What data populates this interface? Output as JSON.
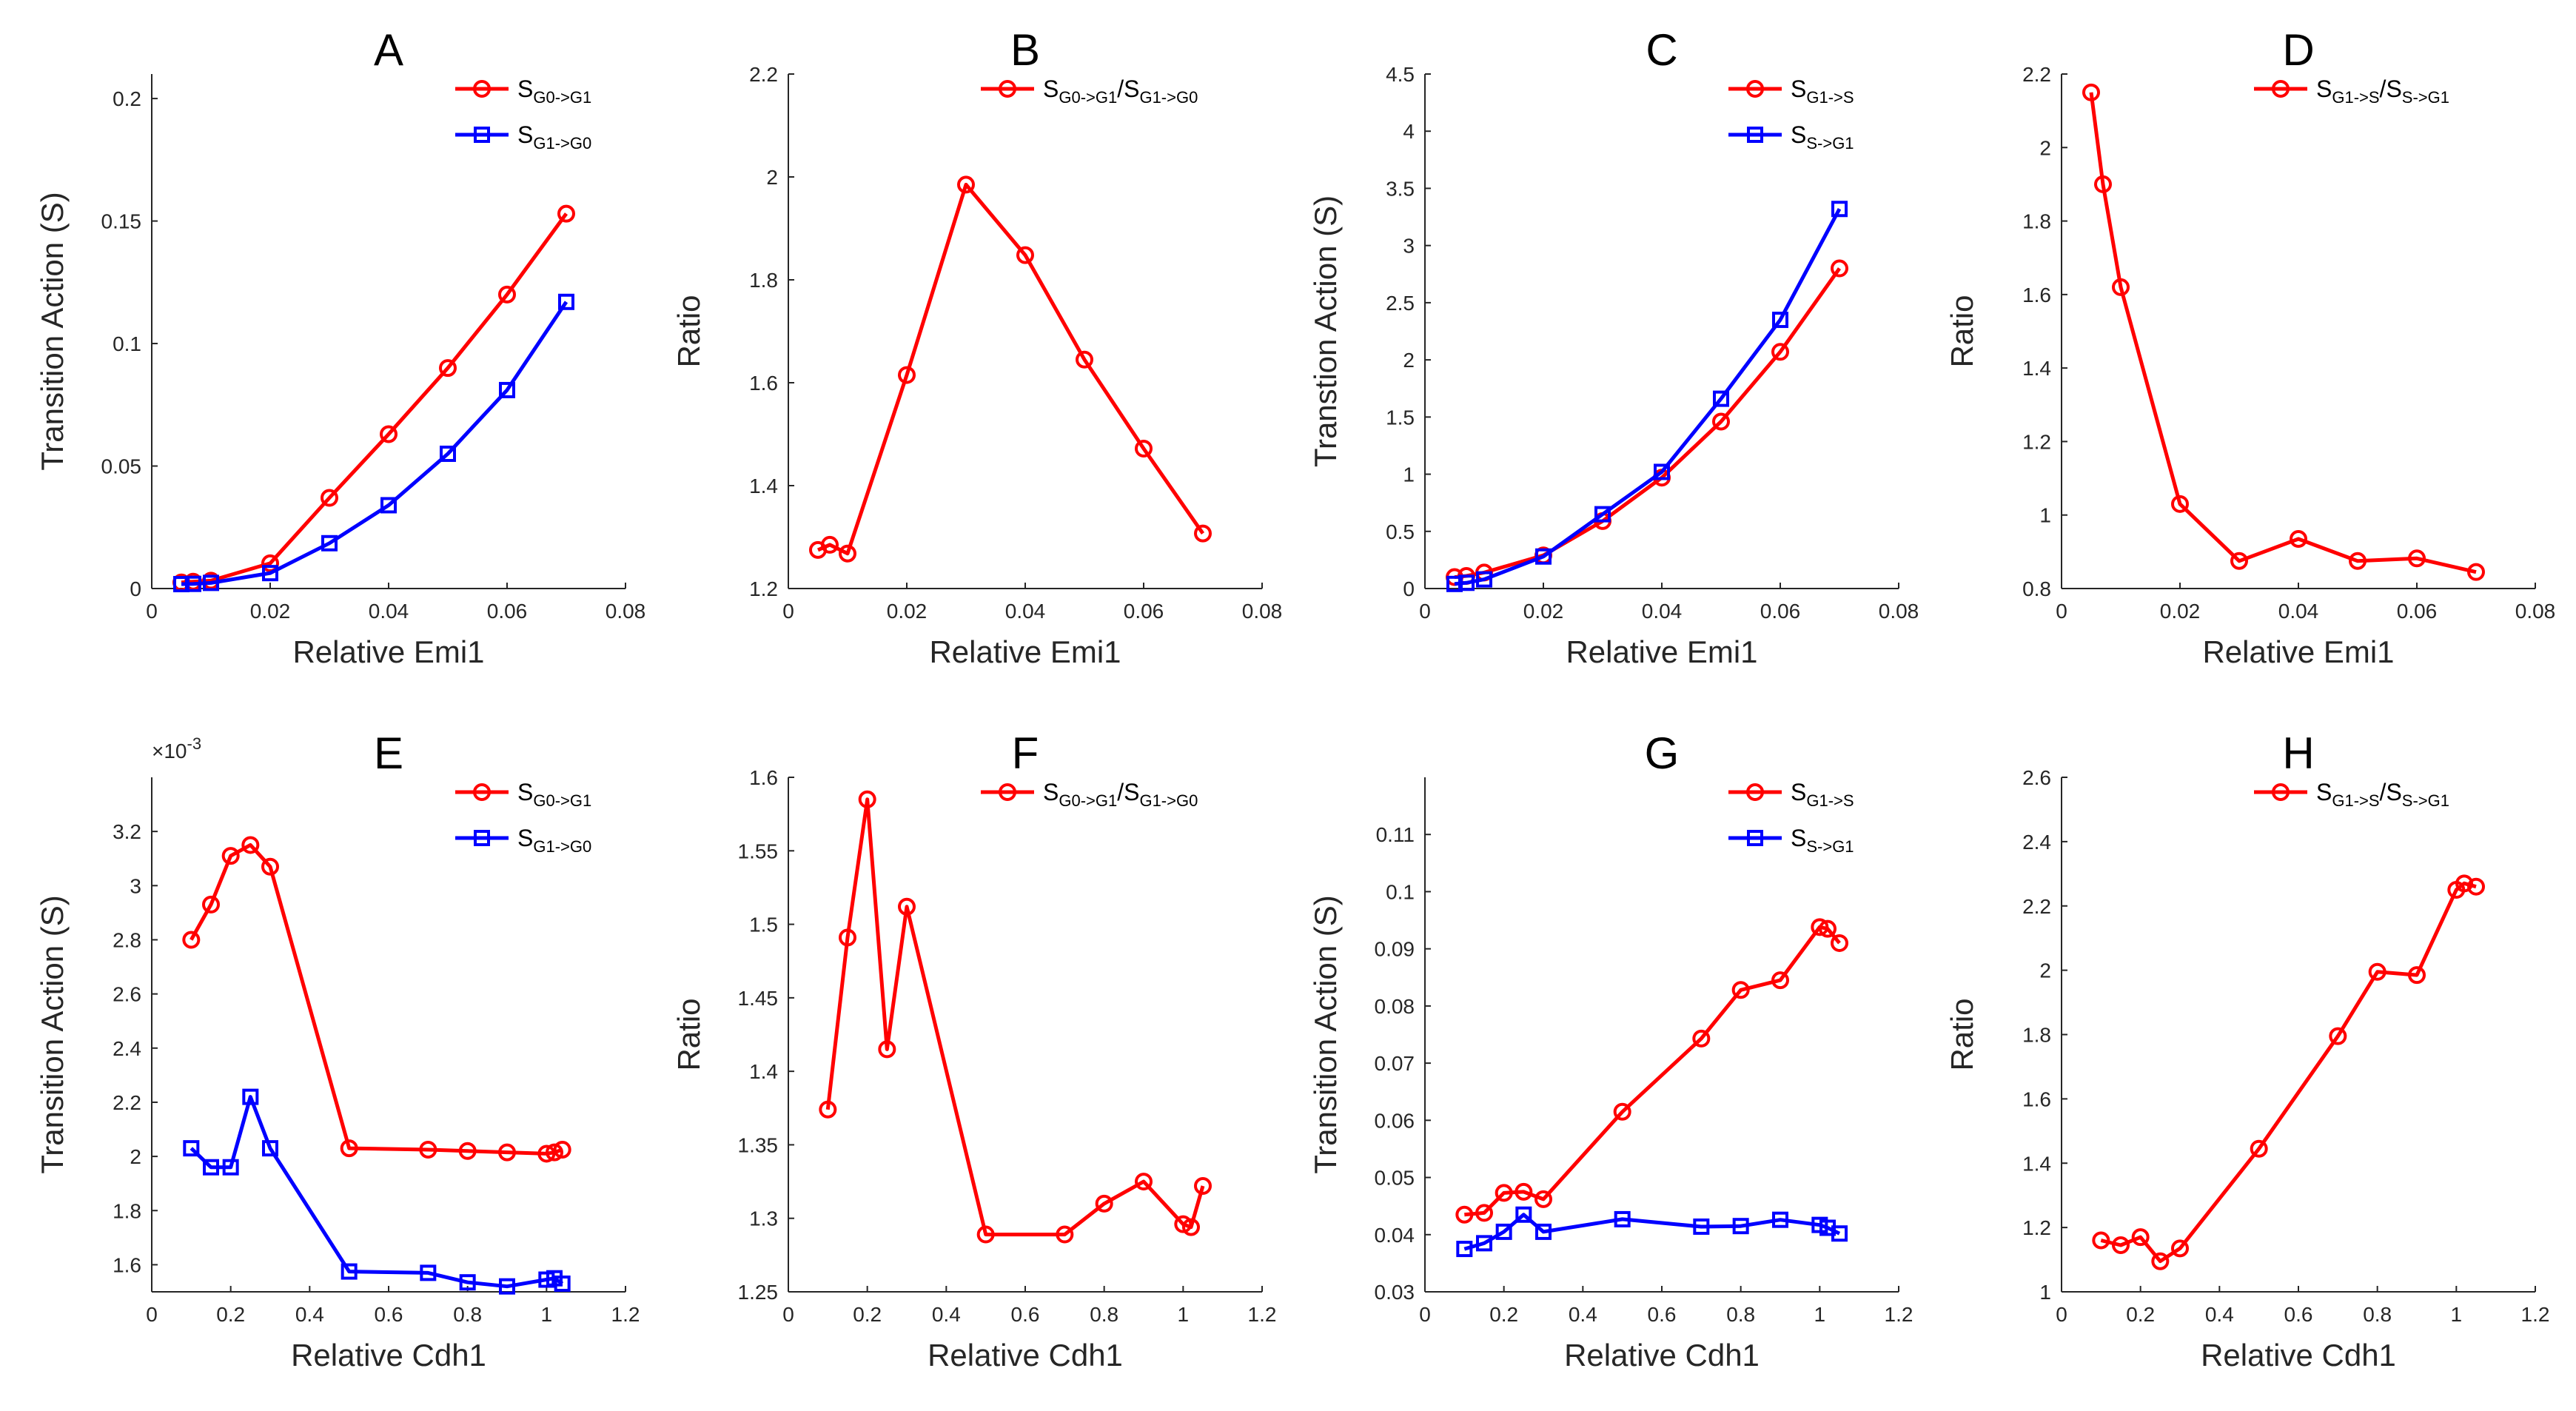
{
  "colors": {
    "red": "#ff0000",
    "blue": "#0000ff"
  },
  "chart_data": [
    {
      "panel": "A",
      "type": "line",
      "title": "A",
      "xlabel": "Relative Emi1",
      "ylabel": "Transition Action (S)",
      "xlim": [
        0,
        0.08
      ],
      "ylim": [
        0,
        0.21
      ],
      "xticks": [
        0,
        0.02,
        0.04,
        0.06,
        0.08
      ],
      "xticklabels": [
        "0",
        "0.02",
        "0.04",
        "0.06",
        "0.08"
      ],
      "yticks": [
        0,
        0.05,
        0.1,
        0.15,
        0.2
      ],
      "yticklabels": [
        "0",
        "0.05",
        "0.1",
        "0.15",
        "0.2"
      ],
      "yexp": "",
      "x": [
        0.005,
        0.007,
        0.01,
        0.02,
        0.03,
        0.04,
        0.05,
        0.06,
        0.07
      ],
      "legend": {
        "position": "top-right"
      },
      "series": [
        {
          "name": "S_{G0->G1}",
          "name_main": "S",
          "name_sub": "G0->G1",
          "name_sep": "",
          "name_main2": "",
          "name_sub2": "",
          "color": "red",
          "marker": "circle",
          "values": [
            0.0025,
            0.0028,
            0.0032,
            0.0103,
            0.037,
            0.063,
            0.09,
            0.12,
            0.153
          ]
        },
        {
          "name": "S_{G1->G0}",
          "name_main": "S",
          "name_sub": "G1->G0",
          "name_sep": "",
          "name_main2": "",
          "name_sub2": "",
          "color": "blue",
          "marker": "square",
          "values": [
            0.0018,
            0.0019,
            0.0023,
            0.0063,
            0.0185,
            0.034,
            0.055,
            0.081,
            0.117
          ]
        }
      ]
    },
    {
      "panel": "B",
      "type": "line",
      "title": "B",
      "xlabel": "Relative Emi1",
      "ylabel": "Ratio",
      "xlim": [
        0,
        0.08
      ],
      "ylim": [
        1.2,
        2.2
      ],
      "xticks": [
        0,
        0.02,
        0.04,
        0.06,
        0.08
      ],
      "xticklabels": [
        "0",
        "0.02",
        "0.04",
        "0.06",
        "0.08"
      ],
      "yticks": [
        1.2,
        1.4,
        1.6,
        1.8,
        2.0,
        2.2
      ],
      "yticklabels": [
        "1.2",
        "1.4",
        "1.6",
        "1.8",
        "2",
        "2.2"
      ],
      "yexp": "",
      "x": [
        0.005,
        0.007,
        0.01,
        0.02,
        0.03,
        0.04,
        0.05,
        0.06,
        0.07
      ],
      "legend": {
        "position": "top-right"
      },
      "series": [
        {
          "name": "S_{G0->G1}/S_{G1->G0}",
          "name_main": "S",
          "name_sub": "G0->G1",
          "name_sep": "/",
          "name_main2": "S",
          "name_sub2": "G1->G0",
          "color": "red",
          "marker": "circle",
          "values": [
            1.275,
            1.285,
            1.268,
            1.615,
            1.985,
            1.848,
            1.645,
            1.472,
            1.307
          ]
        }
      ]
    },
    {
      "panel": "C",
      "type": "line",
      "title": "C",
      "xlabel": "Relative Emi1",
      "ylabel": "Transtion Action (S)",
      "xlim": [
        0,
        0.08
      ],
      "ylim": [
        0,
        4.5
      ],
      "xticks": [
        0,
        0.02,
        0.04,
        0.06,
        0.08
      ],
      "xticklabels": [
        "0",
        "0.02",
        "0.04",
        "0.06",
        "0.08"
      ],
      "yticks": [
        0,
        0.5,
        1,
        1.5,
        2,
        2.5,
        3,
        3.5,
        4,
        4.5
      ],
      "yticklabels": [
        "0",
        "0.5",
        "1",
        "1.5",
        "2",
        "2.5",
        "3",
        "3.5",
        "4",
        "4.5"
      ],
      "yexp": "",
      "x": [
        0.005,
        0.007,
        0.01,
        0.02,
        0.03,
        0.04,
        0.05,
        0.06,
        0.07
      ],
      "legend": {
        "position": "top-right"
      },
      "series": [
        {
          "name": "S_{G1->S}",
          "name_main": "S",
          "name_sub": "G1->S",
          "name_sep": "",
          "name_main2": "",
          "name_sub2": "",
          "color": "red",
          "marker": "circle",
          "values": [
            0.1,
            0.11,
            0.14,
            0.29,
            0.59,
            0.97,
            1.46,
            2.07,
            2.8
          ]
        },
        {
          "name": "S_{S->G1}",
          "name_main": "S",
          "name_sub": "S->G1",
          "name_sep": "",
          "name_main2": "",
          "name_sub2": "",
          "color": "blue",
          "marker": "square",
          "values": [
            0.04,
            0.05,
            0.08,
            0.28,
            0.65,
            1.02,
            1.66,
            2.35,
            3.32
          ]
        }
      ]
    },
    {
      "panel": "D",
      "type": "line",
      "title": "D",
      "xlabel": "Relative Emi1",
      "ylabel": "Ratio",
      "xlim": [
        0,
        0.08
      ],
      "ylim": [
        0.8,
        2.2
      ],
      "xticks": [
        0,
        0.02,
        0.04,
        0.06,
        0.08
      ],
      "xticklabels": [
        "0",
        "0.02",
        "0.04",
        "0.06",
        "0.08"
      ],
      "yticks": [
        0.8,
        1.0,
        1.2,
        1.4,
        1.6,
        1.8,
        2.0,
        2.2
      ],
      "yticklabels": [
        "0.8",
        "1",
        "1.2",
        "1.4",
        "1.6",
        "1.8",
        "2",
        "2.2"
      ],
      "yexp": "",
      "x": [
        0.005,
        0.007,
        0.01,
        0.02,
        0.03,
        0.04,
        0.05,
        0.06,
        0.07
      ],
      "legend": {
        "position": "top-right"
      },
      "series": [
        {
          "name": "S_{G1->S}/S_{S->G1}",
          "name_main": "S",
          "name_sub": "G1->S",
          "name_sep": "/",
          "name_main2": "S",
          "name_sub2": "S->G1",
          "color": "red",
          "marker": "circle",
          "values": [
            2.15,
            1.9,
            1.62,
            1.03,
            0.875,
            0.935,
            0.875,
            0.882,
            0.845
          ]
        }
      ]
    },
    {
      "panel": "E",
      "type": "line",
      "title": "E",
      "xlabel": "Relative Cdh1",
      "ylabel": "Transition Action (S)",
      "xlim": [
        0,
        1.2
      ],
      "ylim": [
        1.5,
        3.4
      ],
      "xticks": [
        0,
        0.2,
        0.4,
        0.6,
        0.8,
        1.0,
        1.2
      ],
      "xticklabels": [
        "0",
        "0.2",
        "0.4",
        "0.6",
        "0.8",
        "1",
        "1.2"
      ],
      "yticks": [
        1.6,
        1.8,
        2.0,
        2.2,
        2.4,
        2.6,
        2.8,
        3.0,
        3.2
      ],
      "yticklabels": [
        "1.6",
        "1.8",
        "2",
        "2.2",
        "2.4",
        "2.6",
        "2.8",
        "3",
        "3.2"
      ],
      "yexp": "×10",
      "yexp_power": "-3",
      "x": [
        0.1,
        0.15,
        0.2,
        0.25,
        0.3,
        0.5,
        0.7,
        0.8,
        0.9,
        1.0,
        1.02,
        1.04
      ],
      "legend": {
        "position": "top-right"
      },
      "series": [
        {
          "name": "S_{G0->G1}",
          "name_main": "S",
          "name_sub": "G0->G1",
          "name_sep": "",
          "name_main2": "",
          "name_sub2": "",
          "color": "red",
          "marker": "circle",
          "values": [
            2.8,
            2.93,
            3.11,
            3.15,
            3.07,
            2.03,
            2.025,
            2.02,
            2.015,
            2.01,
            2.015,
            2.025
          ]
        },
        {
          "name": "S_{G1->G0}",
          "name_main": "S",
          "name_sub": "G1->G0",
          "name_sep": "",
          "name_main2": "",
          "name_sub2": "",
          "color": "blue",
          "marker": "square",
          "values": [
            2.03,
            1.96,
            1.96,
            2.22,
            2.03,
            1.575,
            1.57,
            1.535,
            1.52,
            1.545,
            1.55,
            1.53
          ]
        }
      ]
    },
    {
      "panel": "F",
      "type": "line",
      "title": "F",
      "xlabel": "Relative Cdh1",
      "ylabel": "Ratio",
      "xlim": [
        0,
        1.2
      ],
      "ylim": [
        1.25,
        1.6
      ],
      "xticks": [
        0,
        0.2,
        0.4,
        0.6,
        0.8,
        1.0,
        1.2
      ],
      "xticklabels": [
        "0",
        "0.2",
        "0.4",
        "0.6",
        "0.8",
        "1",
        "1.2"
      ],
      "yticks": [
        1.25,
        1.3,
        1.35,
        1.4,
        1.45,
        1.5,
        1.55,
        1.6
      ],
      "yticklabels": [
        "1.25",
        "1.3",
        "1.35",
        "1.4",
        "1.45",
        "1.5",
        "1.55",
        "1.6"
      ],
      "yexp": "",
      "x": [
        0.1,
        0.15,
        0.2,
        0.25,
        0.3,
        0.5,
        0.7,
        0.8,
        0.9,
        1.0,
        1.02,
        1.05
      ],
      "legend": {
        "position": "top-right"
      },
      "series": [
        {
          "name": "S_{G0->G1}/S_{G1->G0}",
          "name_main": "S",
          "name_sub": "G0->G1",
          "name_sep": "/",
          "name_main2": "S",
          "name_sub2": "G1->G0",
          "color": "red",
          "marker": "circle",
          "values": [
            1.374,
            1.491,
            1.585,
            1.415,
            1.512,
            1.289,
            1.289,
            1.31,
            1.325,
            1.296,
            1.294,
            1.322
          ]
        }
      ]
    },
    {
      "panel": "G",
      "type": "line",
      "title": "G",
      "xlabel": "Relative Cdh1",
      "ylabel": "Transition Action (S)",
      "xlim": [
        0,
        1.2
      ],
      "ylim": [
        0.03,
        0.12
      ],
      "xticks": [
        0,
        0.2,
        0.4,
        0.6,
        0.8,
        1.0,
        1.2
      ],
      "xticklabels": [
        "0",
        "0.2",
        "0.4",
        "0.6",
        "0.8",
        "1",
        "1.2"
      ],
      "yticks": [
        0.03,
        0.04,
        0.05,
        0.06,
        0.07,
        0.08,
        0.09,
        0.1,
        0.11
      ],
      "yticklabels": [
        "0.03",
        "0.04",
        "0.05",
        "0.06",
        "0.07",
        "0.08",
        "0.09",
        "0.1",
        "0.11"
      ],
      "yexp": "",
      "x": [
        0.1,
        0.15,
        0.2,
        0.25,
        0.3,
        0.5,
        0.7,
        0.8,
        0.9,
        1.0,
        1.02,
        1.05
      ],
      "legend": {
        "position": "top-right"
      },
      "series": [
        {
          "name": "S_{G1->S}",
          "name_main": "S",
          "name_sub": "G1->S",
          "name_sep": "",
          "name_main2": "",
          "name_sub2": "",
          "color": "red",
          "marker": "circle",
          "values": [
            0.0435,
            0.0438,
            0.0473,
            0.0475,
            0.0462,
            0.0615,
            0.0743,
            0.0828,
            0.0845,
            0.0938,
            0.0935,
            0.091
          ]
        },
        {
          "name": "S_{S->G1}",
          "name_main": "S",
          "name_sub": "S->G1",
          "name_sep": "",
          "name_main2": "",
          "name_sub2": "",
          "color": "blue",
          "marker": "square",
          "values": [
            0.0375,
            0.0385,
            0.0405,
            0.0435,
            0.0405,
            0.0427,
            0.0414,
            0.0415,
            0.0426,
            0.0417,
            0.0412,
            0.0402
          ]
        }
      ]
    },
    {
      "panel": "H",
      "type": "line",
      "title": "H",
      "xlabel": "Relative Cdh1",
      "ylabel": "Ratio",
      "xlim": [
        0,
        1.2
      ],
      "ylim": [
        1.0,
        2.6
      ],
      "xticks": [
        0,
        0.2,
        0.4,
        0.6,
        0.8,
        1.0,
        1.2
      ],
      "xticklabels": [
        "0",
        "0.2",
        "0.4",
        "0.6",
        "0.8",
        "1",
        "1.2"
      ],
      "yticks": [
        1.0,
        1.2,
        1.4,
        1.6,
        1.8,
        2.0,
        2.2,
        2.4,
        2.6
      ],
      "yticklabels": [
        "1",
        "1.2",
        "1.4",
        "1.6",
        "1.8",
        "2",
        "2.2",
        "2.4",
        "2.6"
      ],
      "yexp": "",
      "x": [
        0.1,
        0.15,
        0.2,
        0.25,
        0.3,
        0.5,
        0.7,
        0.8,
        0.9,
        1.0,
        1.02,
        1.05
      ],
      "legend": {
        "position": "top-right"
      },
      "series": [
        {
          "name": "S_{G1->S}/S_{S->G1}",
          "name_main": "S",
          "name_sub": "G1->S",
          "name_sep": "/",
          "name_main2": "S",
          "name_sub2": "S->G1",
          "color": "red",
          "marker": "circle",
          "values": [
            1.16,
            1.145,
            1.17,
            1.095,
            1.135,
            1.445,
            1.795,
            1.995,
            1.985,
            2.25,
            2.27,
            2.26
          ]
        }
      ]
    }
  ]
}
